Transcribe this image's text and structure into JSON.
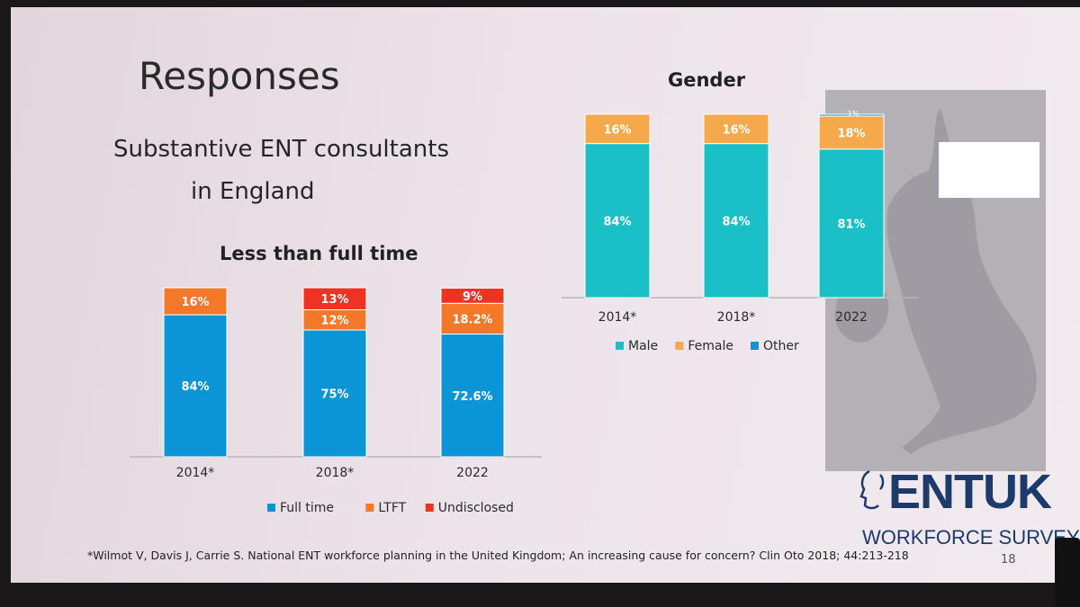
{
  "slide": {
    "title": "Responses",
    "subtitle_line1": "Substantive ENT consultants",
    "subtitle_line2": "in England",
    "footnote": "*Wilmot V, Davis J, Carrie S. National ENT workforce planning in the United Kingdom; An increasing cause for concern? Clin Oto 2018; 44:213-218",
    "page_number": "18",
    "logo_text": "ENTUK",
    "logo_subtitle": "WORKFORCE SURVEY"
  },
  "colors": {
    "full_time": "#0b95d6",
    "ltft": "#f3782a",
    "undisclosed": "#ee3323",
    "male": "#1bc0c6",
    "female": "#f6a94a",
    "other": "#1593cf"
  },
  "chart_data": [
    {
      "type": "bar",
      "stacked": true,
      "title": "Less than full time",
      "categories": [
        "2014*",
        "2018*",
        "2022"
      ],
      "ylim": [
        0,
        100
      ],
      "series": [
        {
          "name": "Full time",
          "values": [
            84,
            75,
            72.6
          ],
          "labels": [
            "84%",
            "75%",
            "72.6%"
          ],
          "color": "#0b95d6"
        },
        {
          "name": "LTFT",
          "values": [
            16,
            12,
            18.2
          ],
          "labels": [
            "16%",
            "12%",
            "18.2%"
          ],
          "color": "#f3782a"
        },
        {
          "name": "Undisclosed",
          "values": [
            0,
            13,
            9
          ],
          "labels": [
            "",
            "13%",
            "9%"
          ],
          "color": "#ee3323"
        }
      ],
      "legend": "bottom"
    },
    {
      "type": "bar",
      "stacked": true,
      "title": "Gender",
      "categories": [
        "2014*",
        "2018*",
        "2022"
      ],
      "ylim": [
        0,
        100
      ],
      "series": [
        {
          "name": "Male",
          "values": [
            84,
            84,
            81
          ],
          "labels": [
            "84%",
            "84%",
            "81%"
          ],
          "color": "#1bc0c6"
        },
        {
          "name": "Female",
          "values": [
            16,
            16,
            18
          ],
          "labels": [
            "16%",
            "16%",
            "18%"
          ],
          "color": "#f6a94a"
        },
        {
          "name": "Other",
          "values": [
            0,
            0,
            1
          ],
          "labels": [
            "",
            "",
            "1%"
          ],
          "color": "#1593cf"
        }
      ],
      "legend": "bottom"
    }
  ]
}
